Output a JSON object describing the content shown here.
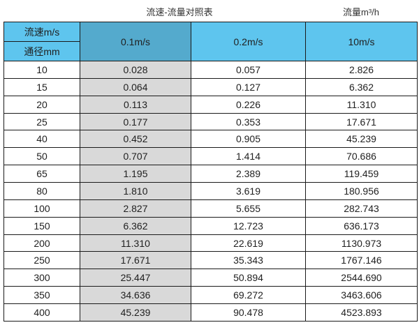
{
  "title": {
    "main": "流速-流量对照表",
    "right_unit": "流量m³/h"
  },
  "table": {
    "corner_top": "流速m/s",
    "corner_bottom": "通径mm",
    "velocity_headers": [
      "0.1m/s",
      "0.2m/s",
      "10m/s"
    ],
    "rows": [
      [
        "10",
        "0.028",
        "0.057",
        "2.826"
      ],
      [
        "15",
        "0.064",
        "0.127",
        "6.362"
      ],
      [
        "20",
        "0.113",
        "0.226",
        "11.310"
      ],
      [
        "25",
        "0.177",
        "0.353",
        "17.671"
      ],
      [
        "40",
        "0.452",
        "0.905",
        "45.239"
      ],
      [
        "50",
        "0.707",
        "1.414",
        "70.686"
      ],
      [
        "65",
        "1.195",
        "2.389",
        "119.459"
      ],
      [
        "80",
        "1.810",
        "3.619",
        "180.956"
      ],
      [
        "100",
        "2.827",
        "5.655",
        "282.743"
      ],
      [
        "150",
        "6.362",
        "12.723",
        "636.173"
      ],
      [
        "200",
        "11.310",
        "22.619",
        "1130.973"
      ],
      [
        "250",
        "17.671",
        "35.343",
        "1767.146"
      ],
      [
        "300",
        "25.447",
        "50.894",
        "2544.690"
      ],
      [
        "350",
        "34.636",
        "69.272",
        "3463.606"
      ],
      [
        "400",
        "45.239",
        "90.478",
        "4523.893"
      ]
    ]
  },
  "colors": {
    "header_blue": "#5EC5EE",
    "highlight_blue": "#54AACD",
    "highlight_grey": "#D9D9D9",
    "border": "#1A1A1A"
  },
  "chart_data": {
    "type": "table",
    "title": "流速-流量对照表",
    "unit_label": "流量m³/h",
    "columns": [
      "通径mm",
      "0.1m/s",
      "0.2m/s",
      "10m/s"
    ],
    "rows": [
      [
        10,
        0.028,
        0.057,
        2.826
      ],
      [
        15,
        0.064,
        0.127,
        6.362
      ],
      [
        20,
        0.113,
        0.226,
        11.31
      ],
      [
        25,
        0.177,
        0.353,
        17.671
      ],
      [
        40,
        0.452,
        0.905,
        45.239
      ],
      [
        50,
        0.707,
        1.414,
        70.686
      ],
      [
        65,
        1.195,
        2.389,
        119.459
      ],
      [
        80,
        1.81,
        3.619,
        180.956
      ],
      [
        100,
        2.827,
        5.655,
        282.743
      ],
      [
        150,
        6.362,
        12.723,
        636.173
      ],
      [
        200,
        11.31,
        22.619,
        1130.973
      ],
      [
        250,
        17.671,
        35.343,
        1767.146
      ],
      [
        300,
        25.447,
        50.894,
        2544.69
      ],
      [
        350,
        34.636,
        69.272,
        3463.606
      ],
      [
        400,
        45.239,
        90.478,
        4523.893
      ]
    ]
  }
}
